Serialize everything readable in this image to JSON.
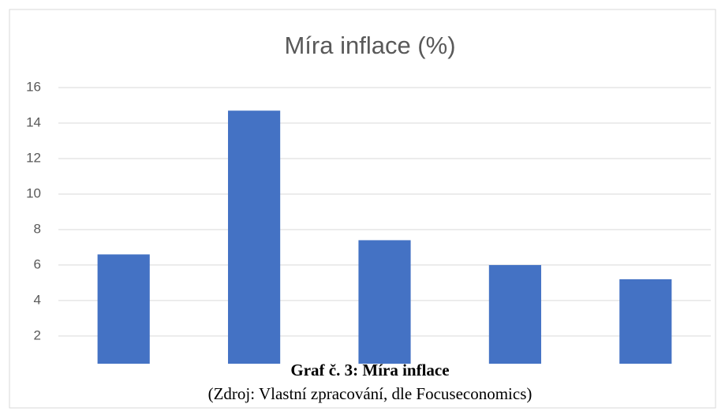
{
  "chart_data": {
    "type": "bar",
    "title": "Míra inflace (%)",
    "categories": [
      null,
      null,
      null,
      null,
      null
    ],
    "values": [
      6.6,
      14.7,
      7.4,
      6.0,
      5.2
    ],
    "color": "#4472c4",
    "ylim": [
      0.44,
      16
    ],
    "yticks": [
      2,
      4,
      6,
      8,
      10,
      12,
      14,
      16
    ],
    "grid": true
  },
  "caption": {
    "title": "Graf č. 3: Míra inflace",
    "source": "(Zdroj: Vlastní zpracování, dle Focuseconomics)"
  }
}
